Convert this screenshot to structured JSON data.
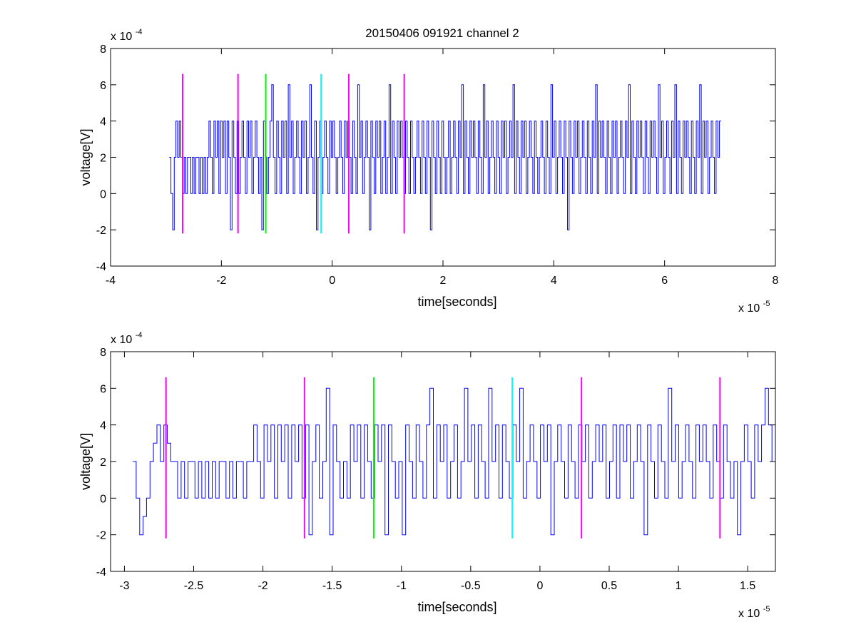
{
  "figure": {
    "title": "20150406 091921 channel 2"
  },
  "colors": {
    "signal": "#0000ff",
    "magenta_marker": "#ff00ff",
    "green_marker": "#00ff00",
    "cyan_marker": "#00ffff",
    "axes": "#000000"
  },
  "chart_data": [
    {
      "type": "line",
      "title": "20150406 091921 channel 2",
      "xlabel": "time[seconds]",
      "ylabel": "voltage[V]",
      "x_exponent_label": "x 10",
      "x_exponent": "-5",
      "y_exponent_label": "x 10",
      "y_exponent": "-4",
      "xlim": [
        -4e-05,
        8e-05
      ],
      "ylim": [
        -0.0004,
        0.0008
      ],
      "xticks": [
        -4e-05,
        -2e-05,
        0,
        2e-05,
        4e-05,
        6e-05,
        8e-05
      ],
      "xtick_labels": [
        "-4",
        "-2",
        "0",
        "2",
        "4",
        "6",
        "8"
      ],
      "yticks": [
        -0.0004,
        -0.0002,
        0,
        0.0002,
        0.0004,
        0.0006,
        0.0008
      ],
      "ytick_labels": [
        "-4",
        "-2",
        "0",
        "2",
        "4",
        "6",
        "8"
      ],
      "grid": false,
      "series": [
        {
          "style": "stairs",
          "color": "#0000ff",
          "x_start": -2.94e-05,
          "x_end": 7.02e-05,
          "levels_e4": [
            2,
            0,
            -2,
            2,
            4,
            2,
            4,
            2,
            0,
            2,
            0,
            2,
            2,
            0,
            2,
            0,
            2,
            2,
            0,
            2,
            0,
            2,
            0,
            2,
            4,
            2,
            0,
            4,
            2,
            4,
            0,
            4,
            2,
            4,
            0,
            4,
            2,
            -2,
            4,
            2,
            0,
            4,
            0,
            2,
            4,
            2,
            0,
            4,
            2,
            4,
            0,
            2,
            4,
            2,
            0,
            2,
            -2,
            4,
            2,
            0,
            2,
            4,
            6,
            2,
            0,
            4,
            2,
            0,
            4,
            2,
            4,
            0,
            6,
            2,
            4,
            0,
            2,
            4,
            2,
            0,
            4,
            2,
            4,
            0,
            2,
            6,
            2,
            0,
            4,
            -2,
            2,
            4,
            0,
            2,
            4,
            2,
            0,
            4,
            2,
            4,
            2,
            0,
            2,
            4,
            2,
            0,
            4,
            2,
            4,
            2,
            0,
            4,
            2,
            0,
            6,
            2,
            4,
            0,
            2,
            4,
            2,
            -2,
            4,
            2,
            0,
            4,
            2,
            4,
            0,
            2,
            4,
            0,
            2,
            6,
            0,
            4,
            2,
            0,
            4,
            2,
            4,
            2,
            0,
            4,
            2,
            0,
            4,
            2,
            0,
            2,
            4,
            2,
            0,
            4,
            2,
            0,
            4,
            2,
            -2,
            4,
            2,
            0,
            4,
            2,
            0,
            4,
            2,
            0,
            2,
            4,
            0,
            2,
            4,
            2,
            0,
            4,
            2,
            6,
            0,
            4,
            2,
            0,
            4,
            2,
            4,
            2,
            0,
            4,
            2,
            0,
            6,
            2,
            4,
            0,
            2,
            4,
            2,
            0,
            4,
            2,
            0,
            4,
            2,
            4,
            0,
            2,
            4,
            2,
            6,
            0,
            4,
            2,
            0,
            4,
            2,
            4,
            0,
            2,
            4,
            2,
            0,
            4,
            2,
            0,
            2,
            4,
            2,
            0,
            4,
            2,
            0,
            6,
            2,
            4,
            0,
            2,
            4,
            2,
            0,
            4,
            2,
            -2,
            4,
            2,
            0,
            4,
            2,
            4,
            0,
            2,
            4,
            2,
            0,
            4,
            2,
            0,
            4,
            2,
            6,
            0,
            4,
            2,
            4,
            2,
            0,
            4,
            2,
            0,
            4,
            2,
            4,
            0,
            2,
            4,
            2,
            0,
            4,
            2,
            6,
            0,
            4,
            2,
            0,
            4,
            2,
            4,
            2,
            0,
            4,
            2,
            0,
            4,
            2,
            4,
            2,
            0,
            6,
            2,
            4,
            0,
            2,
            4,
            2,
            0,
            4,
            2,
            6,
            0,
            4,
            2,
            0,
            4,
            2,
            4,
            2,
            0,
            4,
            2,
            0,
            4,
            2,
            6,
            0,
            4,
            2,
            4,
            0,
            2,
            4,
            2,
            0,
            4,
            2,
            4
          ]
        }
      ],
      "markers": [
        {
          "x": -2.7e-05,
          "color": "#ff00ff"
        },
        {
          "x": -1.7e-05,
          "color": "#ff00ff"
        },
        {
          "x": -1.2e-05,
          "color": "#00ff00"
        },
        {
          "x": -2e-06,
          "color": "#00ffff"
        },
        {
          "x": 3e-06,
          "color": "#ff00ff"
        },
        {
          "x": 1.3e-05,
          "color": "#ff00ff"
        }
      ],
      "marker_ylim": [
        -0.00022,
        0.00066
      ]
    },
    {
      "type": "line",
      "title": "",
      "xlabel": "time[seconds]",
      "ylabel": "voltage[V]",
      "x_exponent_label": "x 10",
      "x_exponent": "-5",
      "y_exponent_label": "x 10",
      "y_exponent": "-4",
      "xlim": [
        -3.1e-05,
        1.7e-05
      ],
      "ylim": [
        -0.0004,
        0.0008
      ],
      "xticks": [
        -3e-05,
        -2.5e-05,
        -2e-05,
        -1.5e-05,
        -1e-05,
        -5e-06,
        0,
        5e-06,
        1e-05,
        1.5e-05
      ],
      "xtick_labels": [
        "-3",
        "-2.5",
        "-2",
        "-1.5",
        "-1",
        "-0.5",
        "0",
        "0.5",
        "1",
        "1.5"
      ],
      "yticks": [
        -0.0004,
        -0.0002,
        0,
        0.0002,
        0.0004,
        0.0006,
        0.0008
      ],
      "ytick_labels": [
        "-4",
        "-2",
        "0",
        "2",
        "4",
        "6",
        "8"
      ],
      "grid": false,
      "series": [
        {
          "style": "stairs",
          "color": "#0000ff",
          "x_start": -2.94e-05,
          "x_end": 1.7e-05,
          "levels_e4": [
            2,
            0,
            -2,
            -1,
            0,
            2,
            3,
            4,
            2,
            4,
            3,
            2,
            2,
            0,
            2,
            0,
            2,
            2,
            0,
            2,
            0,
            2,
            0,
            2,
            0,
            2,
            2,
            0,
            2,
            0,
            2,
            2,
            0,
            2,
            2,
            4,
            2,
            0,
            4,
            2,
            4,
            0,
            4,
            2,
            4,
            0,
            4,
            2,
            4,
            0,
            4,
            -2,
            2,
            4,
            0,
            2,
            6,
            -2,
            4,
            2,
            0,
            2,
            0,
            4,
            2,
            4,
            0,
            4,
            2,
            0,
            4,
            2,
            4,
            -2,
            4,
            2,
            0,
            2,
            -2,
            4,
            2,
            0,
            4,
            2,
            0,
            4,
            6,
            0,
            4,
            2,
            4,
            0,
            2,
            4,
            0,
            2,
            6,
            2,
            4,
            0,
            4,
            2,
            0,
            6,
            2,
            4,
            0,
            4,
            2,
            0,
            4,
            2,
            6,
            0,
            2,
            4,
            2,
            0,
            4,
            2,
            4,
            -2,
            2,
            4,
            2,
            0,
            4,
            2,
            0,
            4,
            2,
            4,
            0,
            2,
            4,
            2,
            4,
            0,
            2,
            4,
            0,
            4,
            2,
            4,
            0,
            2,
            4,
            2,
            -2,
            4,
            2,
            0,
            4,
            2,
            0,
            6,
            2,
            4,
            0,
            2,
            4,
            2,
            0,
            4,
            2,
            4,
            2,
            0,
            4,
            2,
            0,
            4,
            2,
            0,
            2,
            -2,
            2,
            4,
            2,
            0,
            4,
            2,
            4,
            6,
            4,
            2
          ]
        }
      ],
      "markers": [
        {
          "x": -2.7e-05,
          "color": "#ff00ff"
        },
        {
          "x": -1.7e-05,
          "color": "#ff00ff"
        },
        {
          "x": -1.2e-05,
          "color": "#00ff00"
        },
        {
          "x": -2e-06,
          "color": "#00ffff"
        },
        {
          "x": 3e-06,
          "color": "#ff00ff"
        },
        {
          "x": 1.3e-05,
          "color": "#ff00ff"
        }
      ],
      "marker_ylim": [
        -0.00022,
        0.00066
      ]
    }
  ]
}
